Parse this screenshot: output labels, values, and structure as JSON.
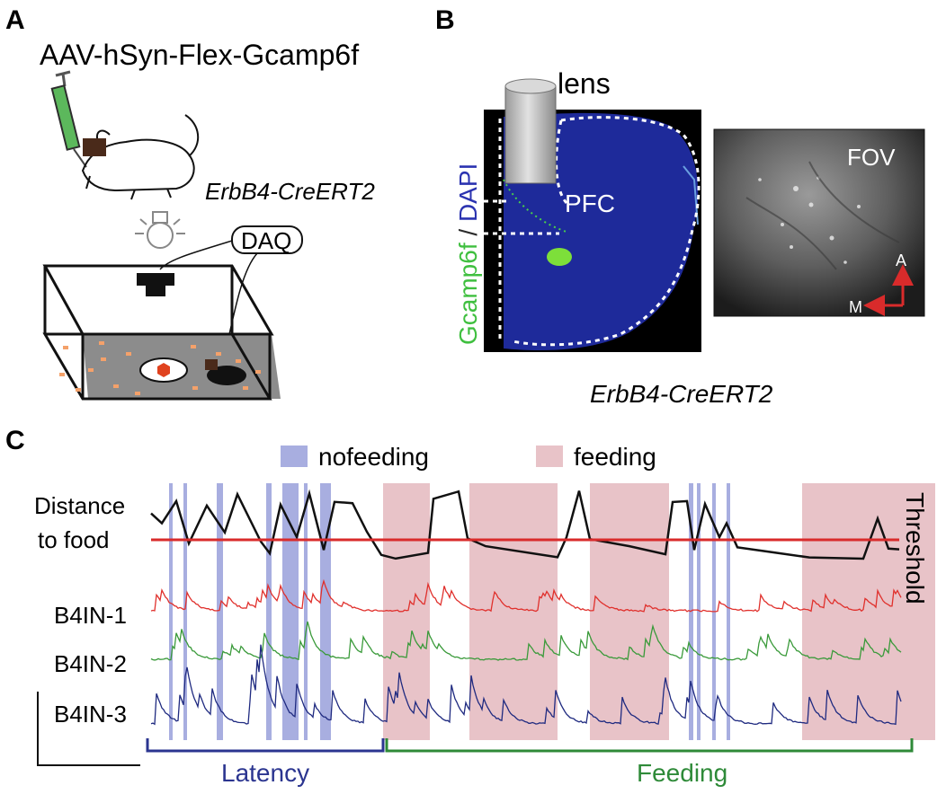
{
  "panel_a": {
    "letter": "A",
    "construct": "AAV-hSyn-Flex-Gcamp6f",
    "mouse_line": "ErbB4-CreERT2",
    "daq": "DAQ"
  },
  "panel_b": {
    "letter": "B",
    "lens": "lens",
    "stain_green": "Gcamp6f",
    "stain_sep": " / ",
    "stain_blue": "DAPI",
    "region": "PFC",
    "fov": "FOV",
    "axis_a": "A",
    "axis_m": "M",
    "mouse_line": "ErbB4-CreERT2"
  },
  "panel_c": {
    "letter": "C",
    "legend_nofeeding": "nofeeding",
    "legend_feeding": "feeding",
    "distance_label_1": "Distance",
    "distance_label_2": "to food",
    "threshold": "Threshold",
    "trace_1": "B4IN-1",
    "trace_2": "B4IN-2",
    "trace_3": "B4IN-3",
    "latency": "Latency",
    "feeding": "Feeding"
  },
  "colors": {
    "nofeeding": "#a8aee0",
    "feeding": "#e8c3c8",
    "threshold": "#d92b2b",
    "b4in1": "#e0302c",
    "b4in2": "#3a9a3a",
    "b4in3": "#1f2a80",
    "latency": "#2b3590",
    "feeding_bracket": "#2e8a38",
    "gcamp": "#3fbf3f",
    "dapi": "#2b33b0"
  }
}
